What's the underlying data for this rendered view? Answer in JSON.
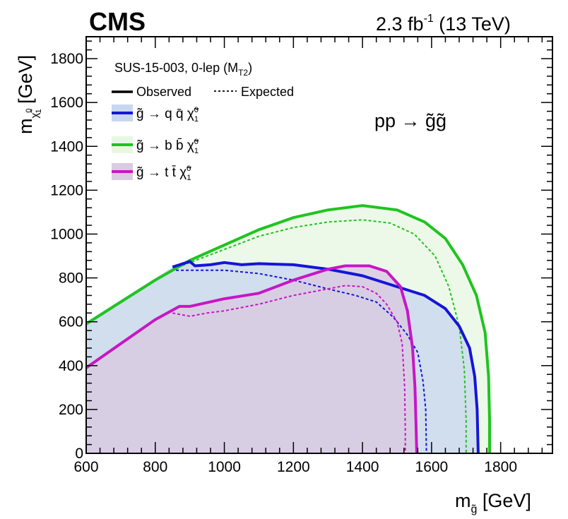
{
  "header": {
    "experiment": "CMS",
    "lumi": "2.3 fb",
    "lumi_exp": "-1",
    "energy": " (13 TeV)"
  },
  "legend": {
    "analysis": "SUS-15-003, 0-lep (M",
    "analysis_sub": "T2",
    "analysis_close": ")",
    "observed": "Observed",
    "expected": "Expected",
    "entries": [
      "g̃ → q q̄ χ̃",
      "g̃ → b b̄ χ̃",
      "g̃ → t t̄ χ̃"
    ],
    "chi_super": "0",
    "chi_sub": "1"
  },
  "process": "pp → g̃g̃",
  "colors": {
    "qq": "#1515d8",
    "bb": "#1fc41f",
    "tt": "#c617c6",
    "qq_fill": "#c9d7ee",
    "bb_fill": "#e8f7e2",
    "tt_fill": "#d9cbe2"
  },
  "chart_data": {
    "type": "area",
    "title": "",
    "xlabel": "m",
    "xlabel_sub": "g̃",
    "xlabel_unit": " [GeV]",
    "ylabel": "m",
    "ylabel_sub": "χ̃",
    "ylabel_sup": "0",
    "ylabel_subsub": "1",
    "ylabel_unit": " [GeV]",
    "xlim": [
      600,
      1950
    ],
    "ylim": [
      0,
      1900
    ],
    "xticks": [
      600,
      800,
      1000,
      1200,
      1400,
      1600,
      1800
    ],
    "yticks": [
      0,
      200,
      400,
      600,
      800,
      1000,
      1200,
      1400,
      1600,
      1800
    ],
    "grid": false,
    "legend_position": "top-left",
    "series": [
      {
        "key": "bb",
        "observed": [
          [
            600,
            590
          ],
          [
            700,
            690
          ],
          [
            800,
            790
          ],
          [
            900,
            880
          ],
          [
            1000,
            950
          ],
          [
            1100,
            1020
          ],
          [
            1200,
            1075
          ],
          [
            1300,
            1110
          ],
          [
            1400,
            1130
          ],
          [
            1500,
            1110
          ],
          [
            1580,
            1055
          ],
          [
            1640,
            980
          ],
          [
            1690,
            860
          ],
          [
            1730,
            720
          ],
          [
            1755,
            550
          ],
          [
            1765,
            350
          ],
          [
            1768,
            150
          ],
          [
            1768,
            0
          ]
        ],
        "expected": [
          [
            840,
            830
          ],
          [
            900,
            870
          ],
          [
            1000,
            930
          ],
          [
            1100,
            990
          ],
          [
            1200,
            1030
          ],
          [
            1300,
            1055
          ],
          [
            1400,
            1065
          ],
          [
            1480,
            1050
          ],
          [
            1550,
            1000
          ],
          [
            1610,
            900
          ],
          [
            1650,
            760
          ],
          [
            1680,
            580
          ],
          [
            1695,
            380
          ],
          [
            1700,
            150
          ],
          [
            1700,
            0
          ]
        ]
      },
      {
        "key": "qq",
        "observed": [
          [
            850,
            850
          ],
          [
            900,
            875
          ],
          [
            915,
            855
          ],
          [
            960,
            860
          ],
          [
            1000,
            870
          ],
          [
            1050,
            860
          ],
          [
            1100,
            865
          ],
          [
            1200,
            860
          ],
          [
            1300,
            840
          ],
          [
            1400,
            810
          ],
          [
            1500,
            760
          ],
          [
            1580,
            720
          ],
          [
            1640,
            660
          ],
          [
            1680,
            580
          ],
          [
            1710,
            480
          ],
          [
            1725,
            350
          ],
          [
            1732,
            200
          ],
          [
            1735,
            0
          ]
        ],
        "expected": [
          [
            860,
            835
          ],
          [
            1000,
            835
          ],
          [
            1100,
            820
          ],
          [
            1200,
            790
          ],
          [
            1300,
            750
          ],
          [
            1380,
            720
          ],
          [
            1440,
            690
          ],
          [
            1490,
            620
          ],
          [
            1530,
            540
          ],
          [
            1560,
            460
          ],
          [
            1575,
            330
          ],
          [
            1583,
            200
          ],
          [
            1585,
            0
          ]
        ]
      },
      {
        "key": "tt",
        "observed": [
          [
            600,
            390
          ],
          [
            700,
            500
          ],
          [
            800,
            610
          ],
          [
            870,
            670
          ],
          [
            900,
            670
          ],
          [
            1000,
            705
          ],
          [
            1100,
            730
          ],
          [
            1200,
            790
          ],
          [
            1300,
            840
          ],
          [
            1350,
            855
          ],
          [
            1420,
            855
          ],
          [
            1470,
            830
          ],
          [
            1510,
            760
          ],
          [
            1530,
            650
          ],
          [
            1545,
            480
          ],
          [
            1552,
            300
          ],
          [
            1555,
            130
          ],
          [
            1557,
            0
          ]
        ],
        "expected": [
          [
            850,
            640
          ],
          [
            900,
            625
          ],
          [
            950,
            640
          ],
          [
            1000,
            650
          ],
          [
            1100,
            680
          ],
          [
            1200,
            720
          ],
          [
            1300,
            750
          ],
          [
            1350,
            765
          ],
          [
            1400,
            760
          ],
          [
            1440,
            730
          ],
          [
            1470,
            680
          ],
          [
            1500,
            600
          ],
          [
            1515,
            500
          ],
          [
            1522,
            300
          ],
          [
            1524,
            100
          ],
          [
            1524,
            0
          ]
        ]
      }
    ]
  }
}
